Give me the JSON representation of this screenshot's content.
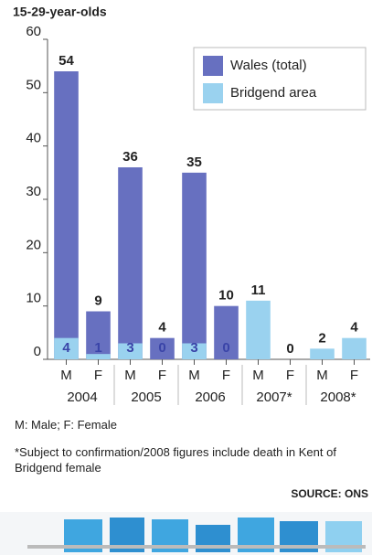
{
  "chart_data": {
    "type": "bar",
    "title": "15-29-year-olds",
    "categories": [
      "M",
      "F",
      "M",
      "F",
      "M",
      "F",
      "M",
      "F",
      "M",
      "F"
    ],
    "groups": [
      "2004",
      "2005",
      "2006",
      "2007*",
      "2008*"
    ],
    "series": [
      {
        "name": "Wales (total)",
        "color": "#6770c0",
        "values": [
          54,
          9,
          36,
          4,
          35,
          10,
          null,
          null,
          null,
          null
        ]
      },
      {
        "name": "Bridgend area",
        "color": "#9ad2ef",
        "values": [
          4,
          1,
          3,
          0,
          3,
          0,
          11,
          0,
          2,
          4
        ]
      }
    ],
    "ylim": [
      0,
      60
    ],
    "yticks": [
      0,
      10,
      20,
      30,
      40,
      50,
      60
    ],
    "grid": false,
    "legend": "top-right",
    "notes": [
      "M: Male; F: Female",
      "*Subject to confirmation/2008 figures include death in Kent of Bridgend female"
    ],
    "source": "SOURCE: ONS"
  }
}
